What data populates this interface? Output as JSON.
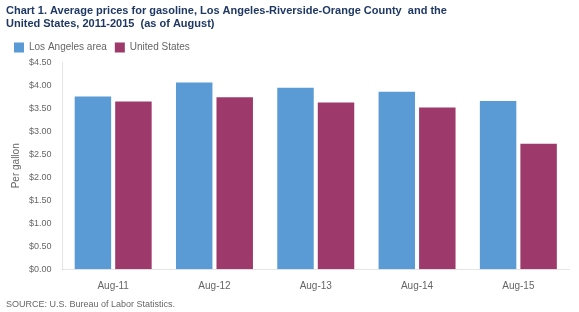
{
  "chart_data": {
    "type": "bar",
    "title": "Chart 1. Average prices for gasoline, Los Angeles-Riverside-Orange County  and the\nUnited States, 2011-2015  (as of August)",
    "ylabel": "Per gallon",
    "annotations": [
      "SOURCE: U.S. Bureau of Labor Statistics."
    ],
    "categories": [
      "Aug-11",
      "Aug-12",
      "Aug-13",
      "Aug-14",
      "Aug-15"
    ],
    "series": [
      {
        "name": "Los Angeles area",
        "color": "#5B9BD5",
        "values": [
          3.76,
          4.06,
          3.95,
          3.86,
          3.66
        ]
      },
      {
        "name": "United States",
        "color": "#9E3A6B",
        "values": [
          3.65,
          3.74,
          3.63,
          3.52,
          2.73
        ]
      }
    ],
    "ylim": [
      0.0,
      4.5
    ],
    "yticks": [
      {
        "value": 0.0,
        "label": "$0.00"
      },
      {
        "value": 0.5,
        "label": "$0.50"
      },
      {
        "value": 1.0,
        "label": "$1.00"
      },
      {
        "value": 1.5,
        "label": "$1.50"
      },
      {
        "value": 2.0,
        "label": "$2.00"
      },
      {
        "value": 2.5,
        "label": "$2.50"
      },
      {
        "value": 3.0,
        "label": "$3.00"
      },
      {
        "value": 3.5,
        "label": "$3.50"
      },
      {
        "value": 4.0,
        "label": "$4.00"
      },
      {
        "value": 4.5,
        "label": "$4.50"
      }
    ],
    "grid": false,
    "legend": "upper left"
  }
}
